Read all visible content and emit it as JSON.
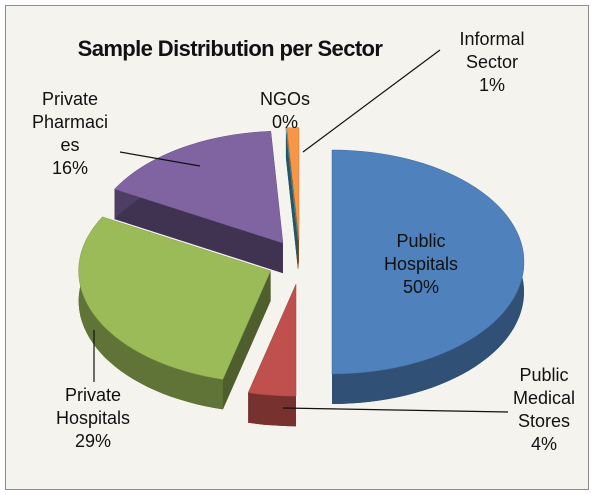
{
  "chart_data": {
    "type": "pie",
    "title": "Sample Distribution per Sector",
    "categories": [
      "Public Hospitals",
      "Public Medical Stores",
      "Private Hospitals",
      "Private Pharmacies",
      "NGOs",
      "Informal Sector"
    ],
    "values": [
      50,
      4,
      29,
      16,
      0,
      1
    ],
    "value_labels": [
      "50%",
      "4%",
      "29%",
      "16%",
      "0%",
      "1%"
    ],
    "colors": [
      "#4f81bd",
      "#c0504d",
      "#9bbb59",
      "#8064a2",
      "#4bacc6",
      "#f79646"
    ]
  }
}
